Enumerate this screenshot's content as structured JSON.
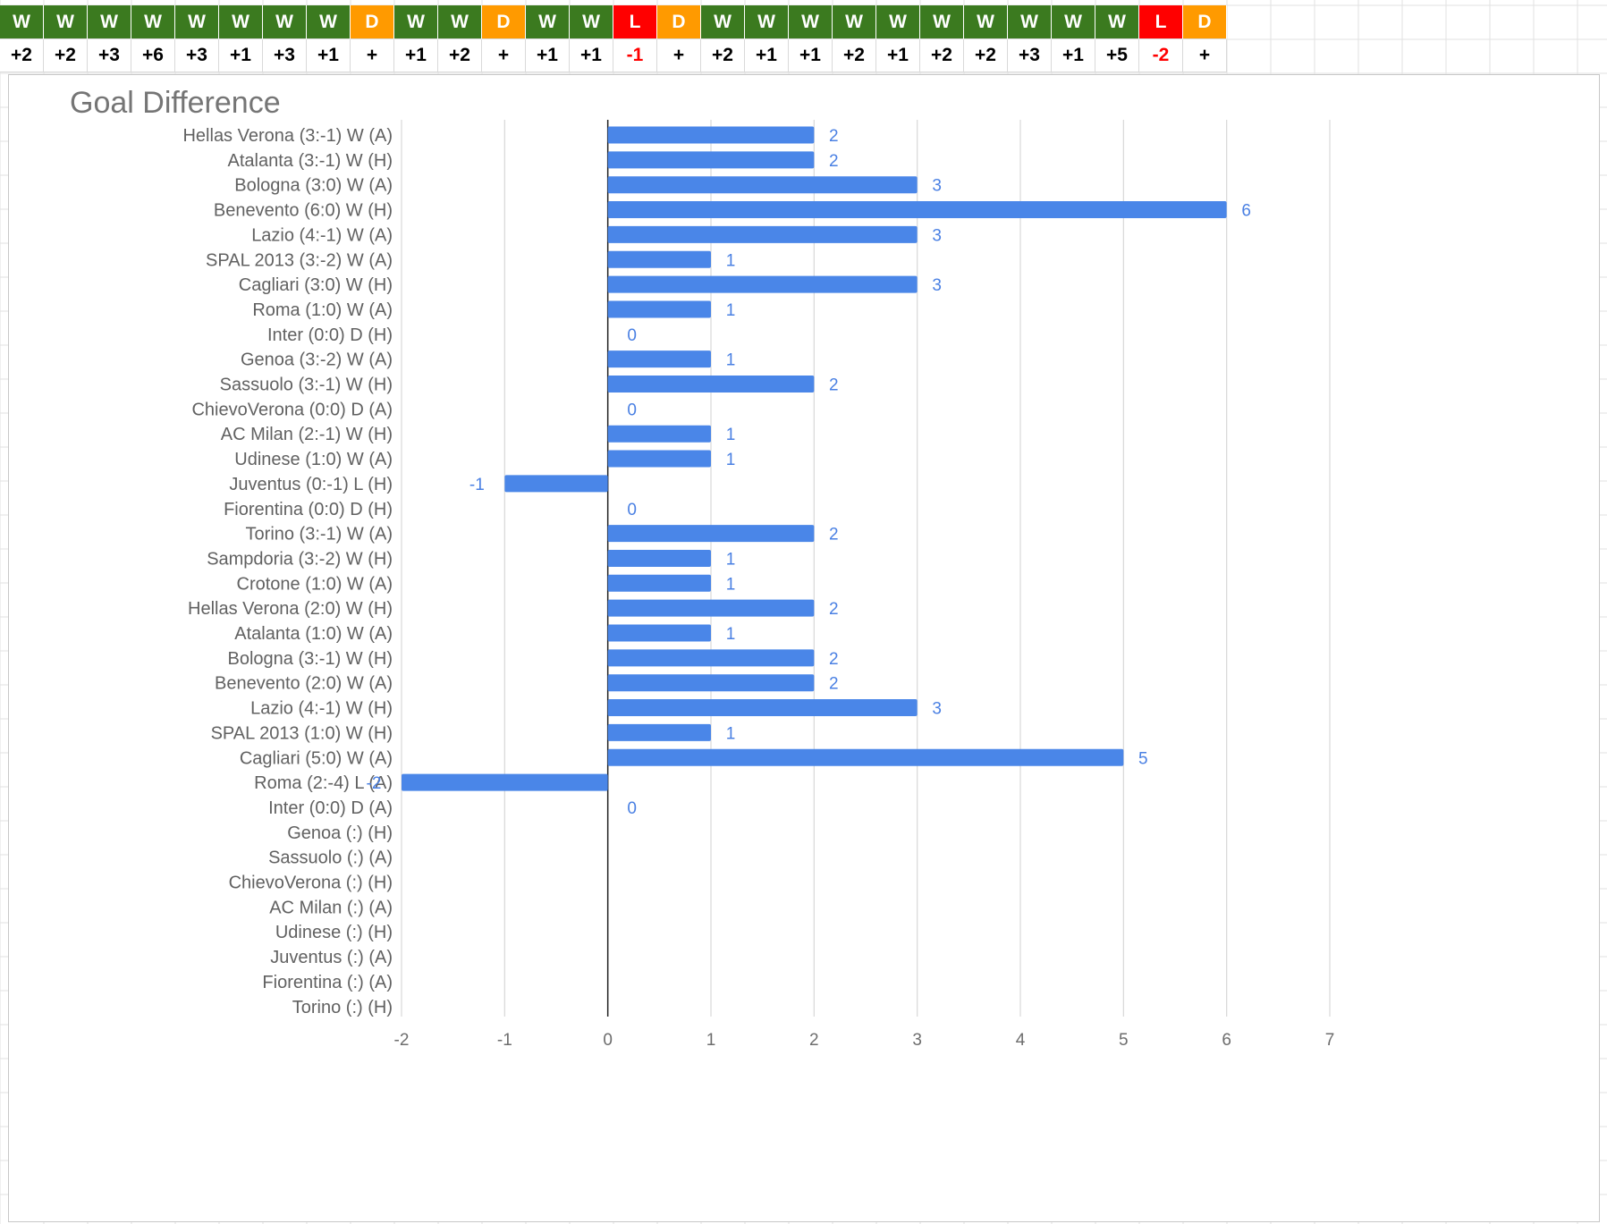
{
  "colors": {
    "win": "#3b7a1f",
    "draw": "#ff9a00",
    "loss": "#ff0000",
    "bar": "#4a86e8",
    "negative_text": "#ff0000"
  },
  "strip": {
    "results": [
      "W",
      "W",
      "W",
      "W",
      "W",
      "W",
      "W",
      "W",
      "D",
      "W",
      "W",
      "D",
      "W",
      "W",
      "L",
      "D",
      "W",
      "W",
      "W",
      "W",
      "W",
      "W",
      "W",
      "W",
      "W",
      "W",
      "L",
      "D"
    ],
    "goal_diffs": [
      "+2",
      "+2",
      "+3",
      "+6",
      "+3",
      "+1",
      "+3",
      "+1",
      "+",
      "+1",
      "+2",
      "+",
      "+1",
      "+1",
      "-1",
      "+",
      "+2",
      "+1",
      "+1",
      "+2",
      "+1",
      "+2",
      "+2",
      "+3",
      "+1",
      "+5",
      "-2",
      "+"
    ]
  },
  "chart_data": {
    "type": "bar",
    "orientation": "horizontal",
    "title": "Goal Difference",
    "categories": [
      "Hellas Verona (3:-1)  W (A)",
      "Atalanta (3:-1)  W (H)",
      "Bologna (3:0)  W (A)",
      "Benevento (6:0)  W (H)",
      "Lazio (4:-1)  W (A)",
      "SPAL 2013 (3:-2)  W (A)",
      "Cagliari (3:0)  W (H)",
      "Roma (1:0)  W (A)",
      "Inter (0:0)  D (H)",
      "Genoa (3:-2)  W (A)",
      "Sassuolo (3:-1)  W (H)",
      "ChievoVerona (0:0)  D (A)",
      "AC Milan (2:-1)  W (H)",
      "Udinese (1:0)  W (A)",
      "Juventus (0:-1)  L (H)",
      "Fiorentina (0:0)  D (H)",
      "Torino (3:-1)  W (A)",
      "Sampdoria (3:-2)  W (H)",
      "Crotone (1:0)  W (A)",
      "Hellas Verona (2:0)  W (H)",
      "Atalanta (1:0)  W (A)",
      "Bologna (3:-1)  W (H)",
      "Benevento (2:0)  W (A)",
      "Lazio (4:-1)  W (H)",
      "SPAL 2013 (1:0)  W (H)",
      "Cagliari (5:0)  W (A)",
      "Roma (2:-4)  L (A)",
      "Inter (0:0)  D (A)",
      "Genoa (:)   (H)",
      "Sassuolo (:)   (A)",
      "ChievoVerona (:)   (H)",
      "AC Milan (:)   (A)",
      "Udinese (:)   (H)",
      "Juventus (:)   (A)",
      "Fiorentina (:)   (A)",
      "Torino (:)   (H)"
    ],
    "values": [
      2,
      2,
      3,
      6,
      3,
      1,
      3,
      1,
      0,
      1,
      2,
      0,
      1,
      1,
      -1,
      0,
      2,
      1,
      1,
      2,
      1,
      2,
      2,
      3,
      1,
      5,
      -2,
      0,
      null,
      null,
      null,
      null,
      null,
      null,
      null,
      null
    ],
    "data_labels": [
      "2",
      "2",
      "3",
      "6",
      "3",
      "1",
      "3",
      "1",
      "0",
      "1",
      "2",
      "0",
      "1",
      "1",
      "-1",
      "0",
      "2",
      "1",
      "1",
      "2",
      "1",
      "2",
      "2",
      "3",
      "1",
      "5",
      "-2",
      "0",
      "",
      "",
      "",
      "",
      "",
      "",
      "",
      ""
    ],
    "xlim": [
      -2,
      7
    ],
    "x_ticks": [
      "-2",
      "-1",
      "0",
      "1",
      "2",
      "3",
      "4",
      "5",
      "6",
      "7"
    ],
    "grid": true,
    "legend": "none"
  }
}
